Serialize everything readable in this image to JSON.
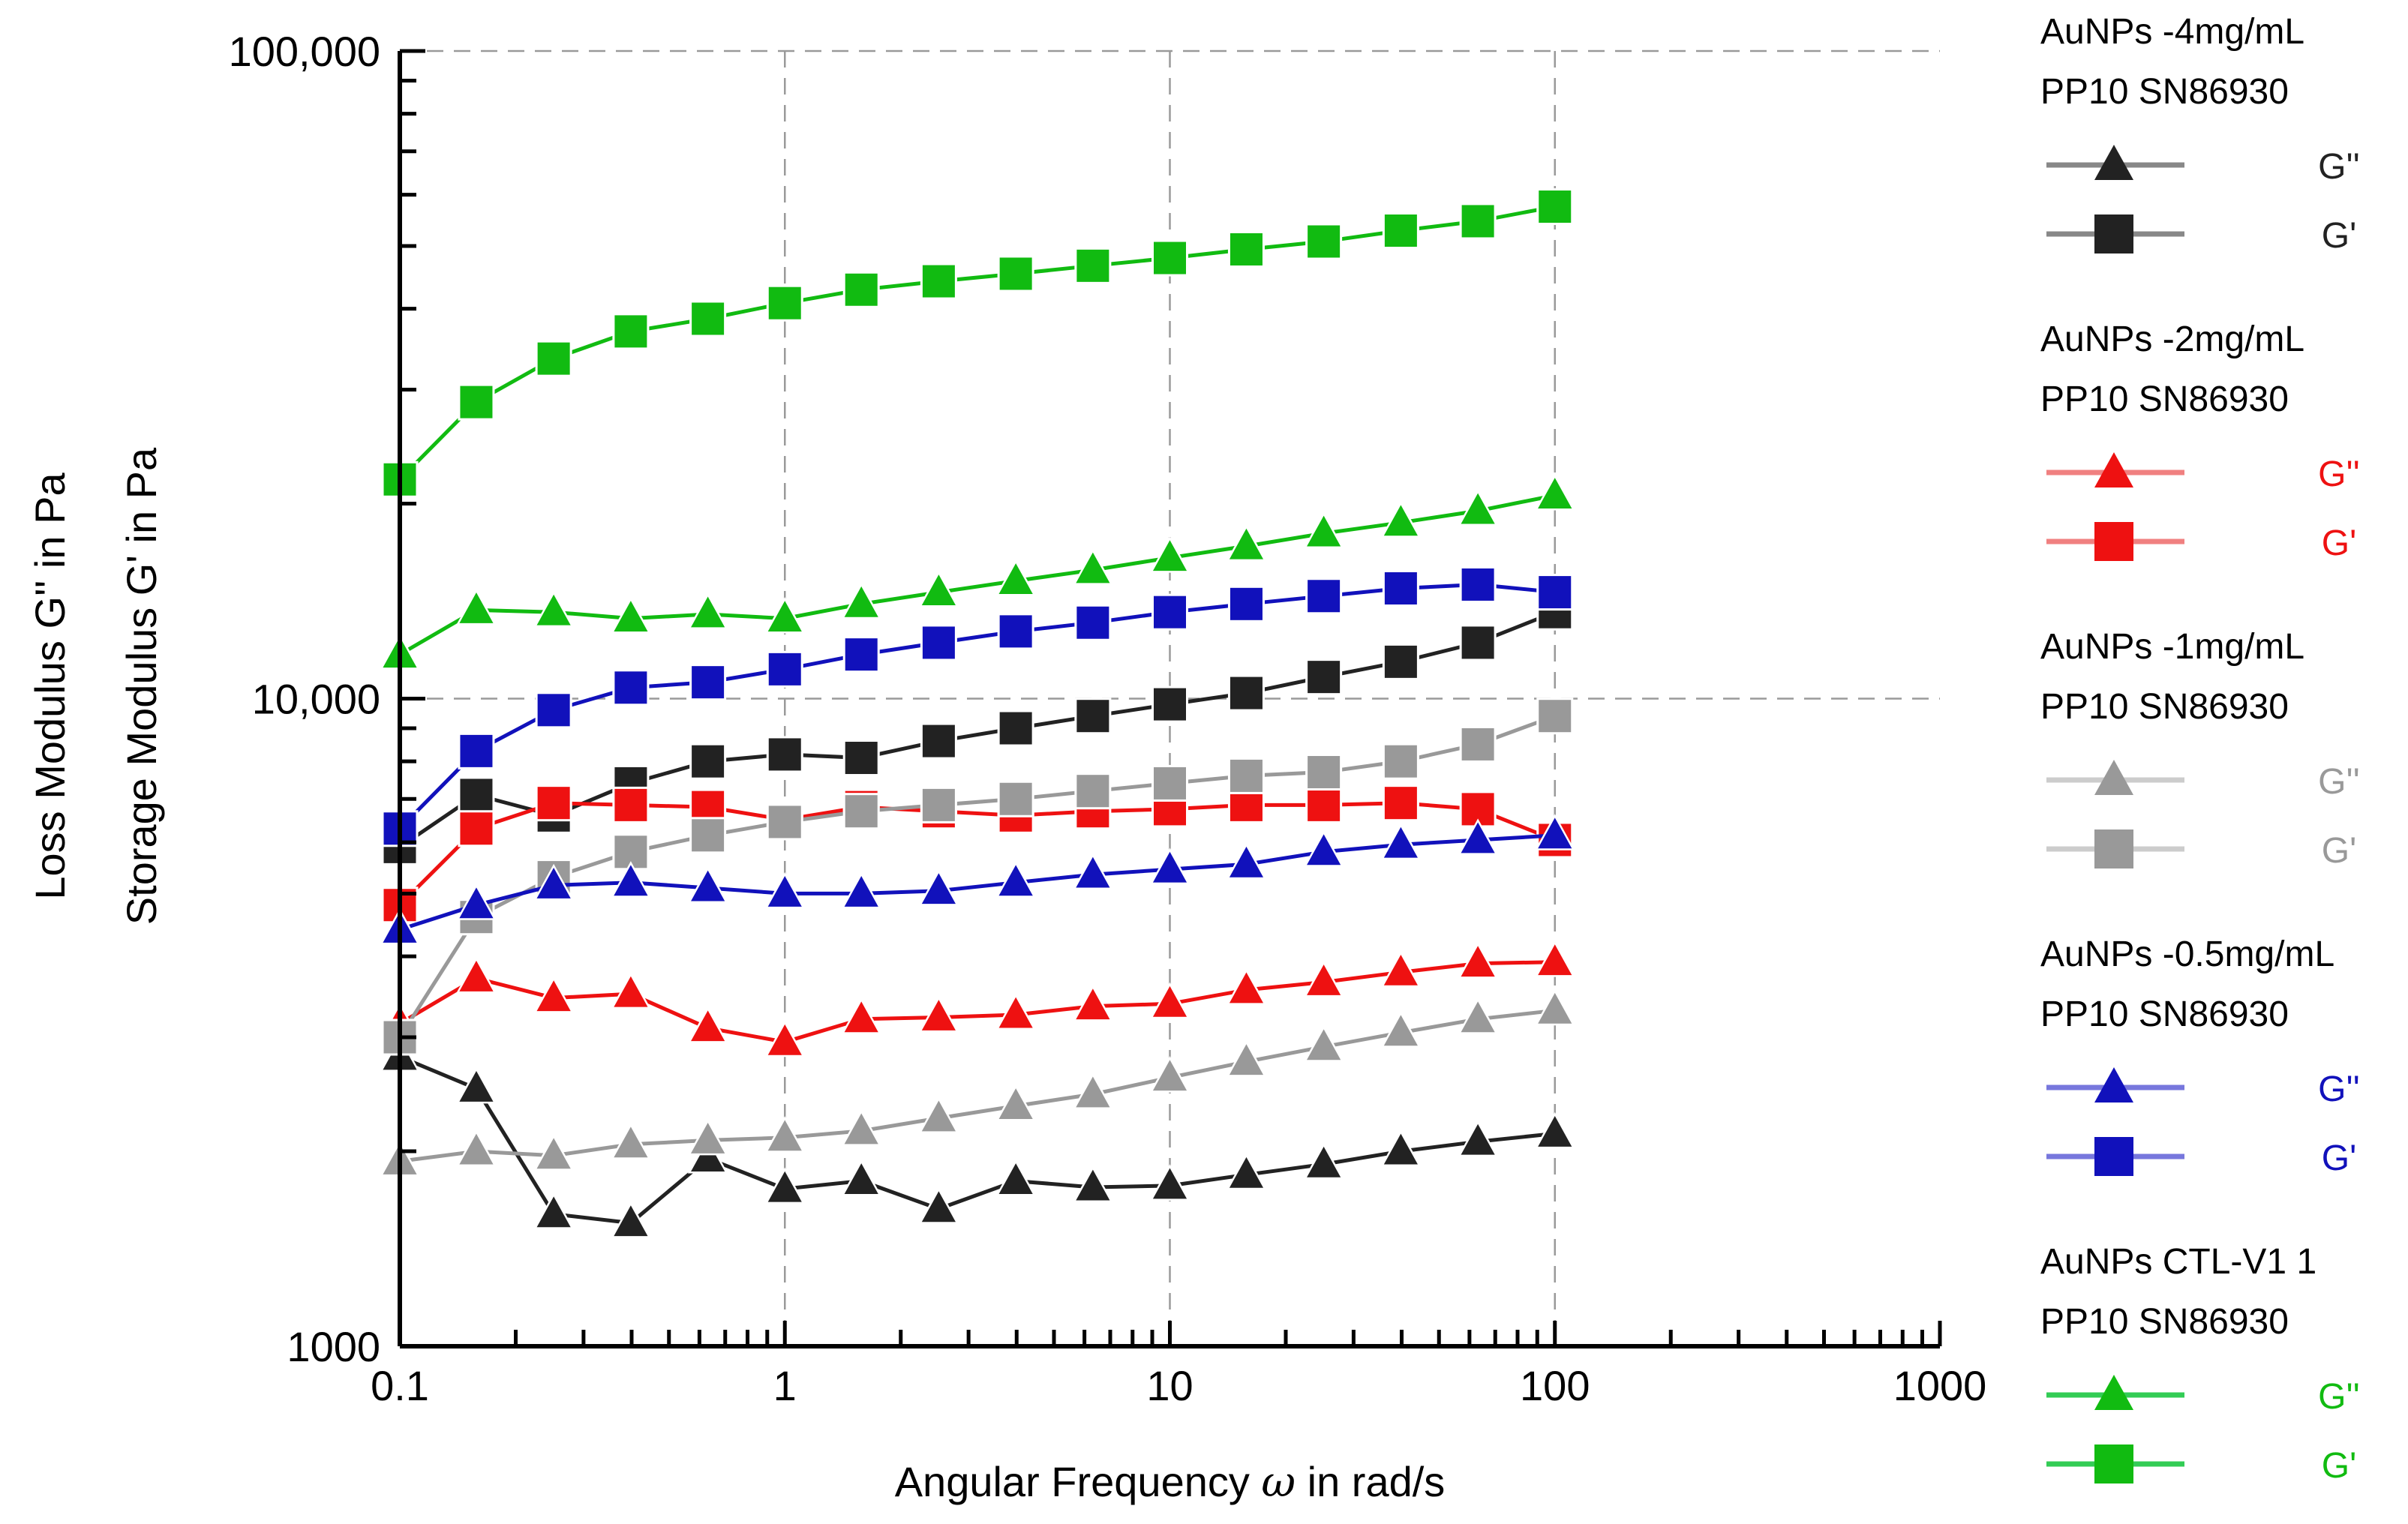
{
  "chart_data": {
    "type": "line",
    "xscale": "log",
    "yscale": "log",
    "xlim": [
      0.1,
      1000
    ],
    "ylim": [
      1000,
      100000
    ],
    "x_ticks": [
      "0.1",
      "1",
      "10",
      "100",
      "1000"
    ],
    "y_ticks": [
      "1000",
      "10,000",
      "100,000"
    ],
    "xlabel_main": "Angular Frequency",
    "xlabel_symbol": "ω",
    "xlabel_unit": "in rad/s",
    "ylabel_loss": "Loss Modulus  G'' in Pa",
    "ylabel_storage": "Storage Modulus  G' in Pa",
    "grid": true,
    "legend_position": "right",
    "x": [
      0.1,
      0.158,
      0.251,
      0.398,
      0.631,
      1,
      1.58,
      2.51,
      3.98,
      6.31,
      10,
      15.8,
      25.1,
      39.8,
      63.1,
      100
    ],
    "groups": [
      {
        "name_line1": "AuNPs -4mg/mL",
        "name_line2": "PP10 SN86930",
        "color": "#222222",
        "legend_color": "#888888",
        "series": [
          {
            "name": "G''",
            "marker": "triangle",
            "values": [
              2800,
              2500,
              1600,
              1550,
              1950,
              1750,
              1800,
              1630,
              1800,
              1760,
              1770,
              1840,
              1910,
              2000,
              2070,
              2130
            ]
          },
          {
            "name": "G'",
            "marker": "square",
            "values": [
              5900,
              7100,
              6600,
              7400,
              8000,
              8200,
              8100,
              8600,
              9000,
              9400,
              9800,
              10200,
              10800,
              11400,
              12200,
              13600
            ]
          }
        ]
      },
      {
        "name_line1": "AuNPs -2mg/mL",
        "name_line2": "PP10 SN86930",
        "color": "#ee1111",
        "legend_color": "#f08080",
        "series": [
          {
            "name": "G''",
            "marker": "triangle",
            "values": [
              3150,
              3700,
              3450,
              3500,
              3100,
              2950,
              3200,
              3220,
              3250,
              3350,
              3380,
              3550,
              3650,
              3780,
              3900,
              3920
            ]
          },
          {
            "name": "G'",
            "marker": "square",
            "values": [
              4800,
              6300,
              6900,
              6850,
              6800,
              6500,
              6800,
              6700,
              6600,
              6700,
              6750,
              6850,
              6850,
              6900,
              6750,
              6050
            ]
          }
        ]
      },
      {
        "name_line1": "AuNPs -1mg/mL",
        "name_line2": "PP10 SN86930",
        "color": "#999999",
        "legend_color": "#cccccc",
        "series": [
          {
            "name": "G''",
            "marker": "triangle",
            "values": [
              1930,
              2000,
              1970,
              2050,
              2080,
              2100,
              2150,
              2250,
              2350,
              2450,
              2600,
              2750,
              2900,
              3050,
              3200,
              3300
            ]
          },
          {
            "name": "G'",
            "marker": "square",
            "values": [
              3000,
              4600,
              5300,
              5800,
              6150,
              6450,
              6700,
              6850,
              7000,
              7200,
              7400,
              7600,
              7700,
              8000,
              8500,
              9400
            ]
          }
        ]
      },
      {
        "name_line1": "AuNPs -0.5mg/mL",
        "name_line2": "PP10 SN86930",
        "color": "#1111bb",
        "legend_color": "#7777dd",
        "series": [
          {
            "name": "G''",
            "marker": "triangle",
            "values": [
              4400,
              4800,
              5150,
              5200,
              5100,
              5000,
              5000,
              5050,
              5200,
              5350,
              5450,
              5550,
              5800,
              5950,
              6050,
              6150
            ]
          },
          {
            "name": "G'",
            "marker": "square",
            "values": [
              6300,
              8300,
              9600,
              10400,
              10600,
              11100,
              11700,
              12200,
              12700,
              13100,
              13600,
              14000,
              14400,
              14800,
              15000,
              14600
            ]
          }
        ]
      },
      {
        "name_line1": "AuNPs CTL-V1 1",
        "name_line2": "PP10 SN86930",
        "color": "#11bb11",
        "legend_color": "#33cc55",
        "series": [
          {
            "name": "G''",
            "marker": "triangle",
            "values": [
              11700,
              13700,
              13600,
              13300,
              13500,
              13300,
              14000,
              14600,
              15200,
              15800,
              16500,
              17200,
              18000,
              18700,
              19500,
              20600
            ]
          },
          {
            "name": "G'",
            "marker": "square",
            "values": [
              21800,
              28700,
              33500,
              36900,
              38600,
              40800,
              42800,
              44100,
              45300,
              46600,
              47900,
              49400,
              50800,
              52800,
              54600,
              57500
            ]
          }
        ]
      }
    ]
  }
}
